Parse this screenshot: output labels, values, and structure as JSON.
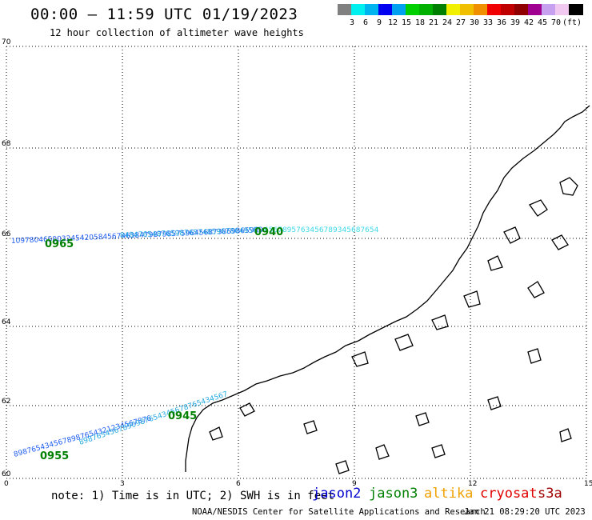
{
  "header": {
    "title": "00:00 — 11:59 UTC 01/19/2023",
    "subtitle": "12 hour collection of altimeter wave heights"
  },
  "legend": {
    "colors": [
      "#808080",
      "#00f0f0",
      "#00b4f0",
      "#0000f0",
      "#00a0f0",
      "#00d000",
      "#00b000",
      "#008000",
      "#f0f000",
      "#f0c000",
      "#f09000",
      "#f00000",
      "#c00000",
      "#900000",
      "#a00090",
      "#c8a0f0",
      "#f0c8f0",
      "#000000"
    ],
    "labels": [
      "3",
      "6",
      "9",
      "12",
      "15",
      "18",
      "21",
      "24",
      "27",
      "30",
      "33",
      "36",
      "39",
      "42",
      "45",
      "70"
    ],
    "unit": "(ft)"
  },
  "axes": {
    "x_ticks": [
      "0",
      "3",
      "6",
      "9",
      "12",
      "15"
    ],
    "y_ticks": [
      "60",
      "62",
      "64",
      "66",
      "68",
      "70"
    ]
  },
  "tracks": [
    {
      "name": "track-north-a",
      "text": "10978046500324542058456746384798798575964568738698659696767998",
      "color": "#1e5cf0",
      "x0": 14,
      "y0": 304,
      "x1": 330,
      "y1": 290
    },
    {
      "name": "track-north-b",
      "text": "8484765487659876574859678649585947596748596857",
      "color": "#22a8e0",
      "x0": 150,
      "y0": 297,
      "x1": 330,
      "y1": 290
    },
    {
      "name": "track-north-c",
      "text": "6567895763456789345687654",
      "color": "#3ad8e8",
      "x0": 330,
      "y0": 290,
      "x1": 600,
      "y1": 290
    },
    {
      "name": "track-south-a",
      "text": "8987654345678987654321234567876543",
      "color": "#1e5cf0",
      "x0": 18,
      "y0": 571,
      "x1": 190,
      "y1": 525
    },
    {
      "name": "track-south-b",
      "text": "8987654567890987654345678765434567",
      "color": "#22a8e0",
      "x0": 100,
      "y0": 556,
      "x1": 290,
      "y1": 493
    }
  ],
  "track_labels": [
    {
      "name": "label-0965",
      "text": "0965",
      "color": "#008000"
    },
    {
      "name": "label-0955",
      "text": "0955",
      "color": "#008000"
    },
    {
      "name": "label-0945",
      "text": "0945",
      "color": "#008000"
    },
    {
      "name": "label-0940",
      "text": "0940",
      "color": "#008000"
    }
  ],
  "note": "note: 1) Time is in UTC; 2) SWH is in feet",
  "satellites": [
    {
      "name": "jason2",
      "color": "#0000d0"
    },
    {
      "name": "jason3",
      "color": "#008000"
    },
    {
      "name": "altika",
      "color": "#f0a000"
    },
    {
      "name": "cryosat",
      "color": "#e00000"
    },
    {
      "name": "s3a",
      "color": "#a00000"
    }
  ],
  "footer": {
    "left": "NOAA/NESDIS Center for Satellite Applications and Research",
    "right": "Jan 21 08:29:20 UTC 2023"
  }
}
